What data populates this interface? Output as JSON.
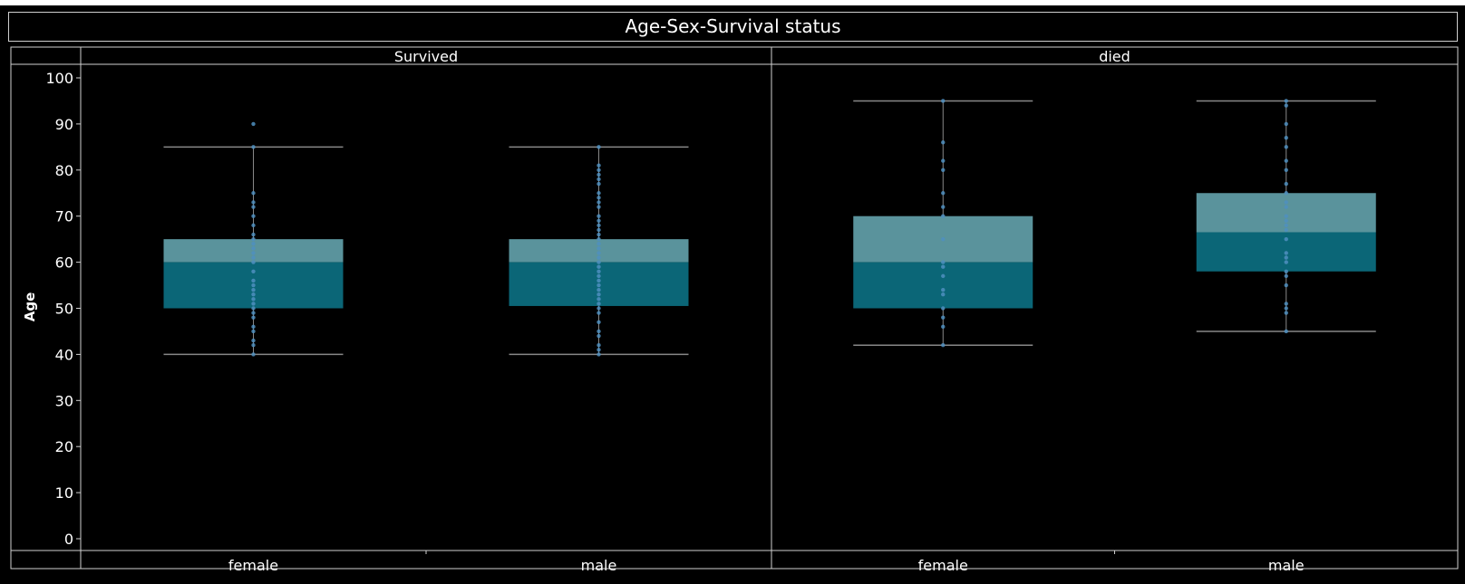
{
  "chart_data": {
    "type": "box",
    "title": "Age-Sex-Survival status",
    "ylabel": "Age",
    "xlabel": "",
    "ylim": [
      0,
      100
    ],
    "yticks": [
      0,
      10,
      20,
      30,
      40,
      50,
      60,
      70,
      80,
      90,
      100
    ],
    "panels": [
      {
        "label": "Survived",
        "groups": [
          {
            "label": "female",
            "whisker_low": 40,
            "q1": 50,
            "median": 60,
            "q3": 65,
            "whisker_high": 85,
            "points": [
              40,
              42,
              43,
              45,
              46,
              48,
              49,
              50,
              51,
              52,
              53,
              54,
              55,
              56,
              58,
              60,
              61,
              62,
              63,
              64,
              65,
              66,
              68,
              70,
              72,
              73,
              75,
              85,
              90
            ]
          },
          {
            "label": "male",
            "whisker_low": 40,
            "q1": 50.5,
            "median": 60,
            "q3": 65,
            "whisker_high": 85,
            "points": [
              40,
              41,
              42,
              44,
              45,
              47,
              49,
              50,
              51,
              52,
              53,
              54,
              55,
              56,
              57,
              58,
              59,
              60,
              61,
              62,
              63,
              64,
              65,
              66,
              67,
              68,
              69,
              70,
              72,
              73,
              74,
              75,
              77,
              78,
              79,
              80,
              81,
              85
            ]
          }
        ]
      },
      {
        "label": "died",
        "groups": [
          {
            "label": "female",
            "whisker_low": 42,
            "q1": 50,
            "median": 60,
            "q3": 70,
            "whisker_high": 95,
            "points": [
              42,
              46,
              48,
              50,
              53,
              54,
              57,
              59,
              60,
              65,
              70,
              72,
              75,
              80,
              82,
              86,
              95
            ]
          },
          {
            "label": "male",
            "whisker_low": 45,
            "q1": 58,
            "median": 66.5,
            "q3": 75,
            "whisker_high": 95,
            "points": [
              45,
              49,
              50,
              51,
              55,
              57,
              58,
              60,
              61,
              62,
              65,
              67,
              68,
              69,
              70,
              72,
              73,
              75,
              77,
              80,
              82,
              85,
              87,
              90,
              94,
              95
            ]
          }
        ]
      }
    ],
    "colors": {
      "upper_box": "#5a939c",
      "lower_box": "#0b6677",
      "points": "#4f8fc0",
      "whisker": "#888888",
      "grid": "#d0d0d0"
    }
  }
}
